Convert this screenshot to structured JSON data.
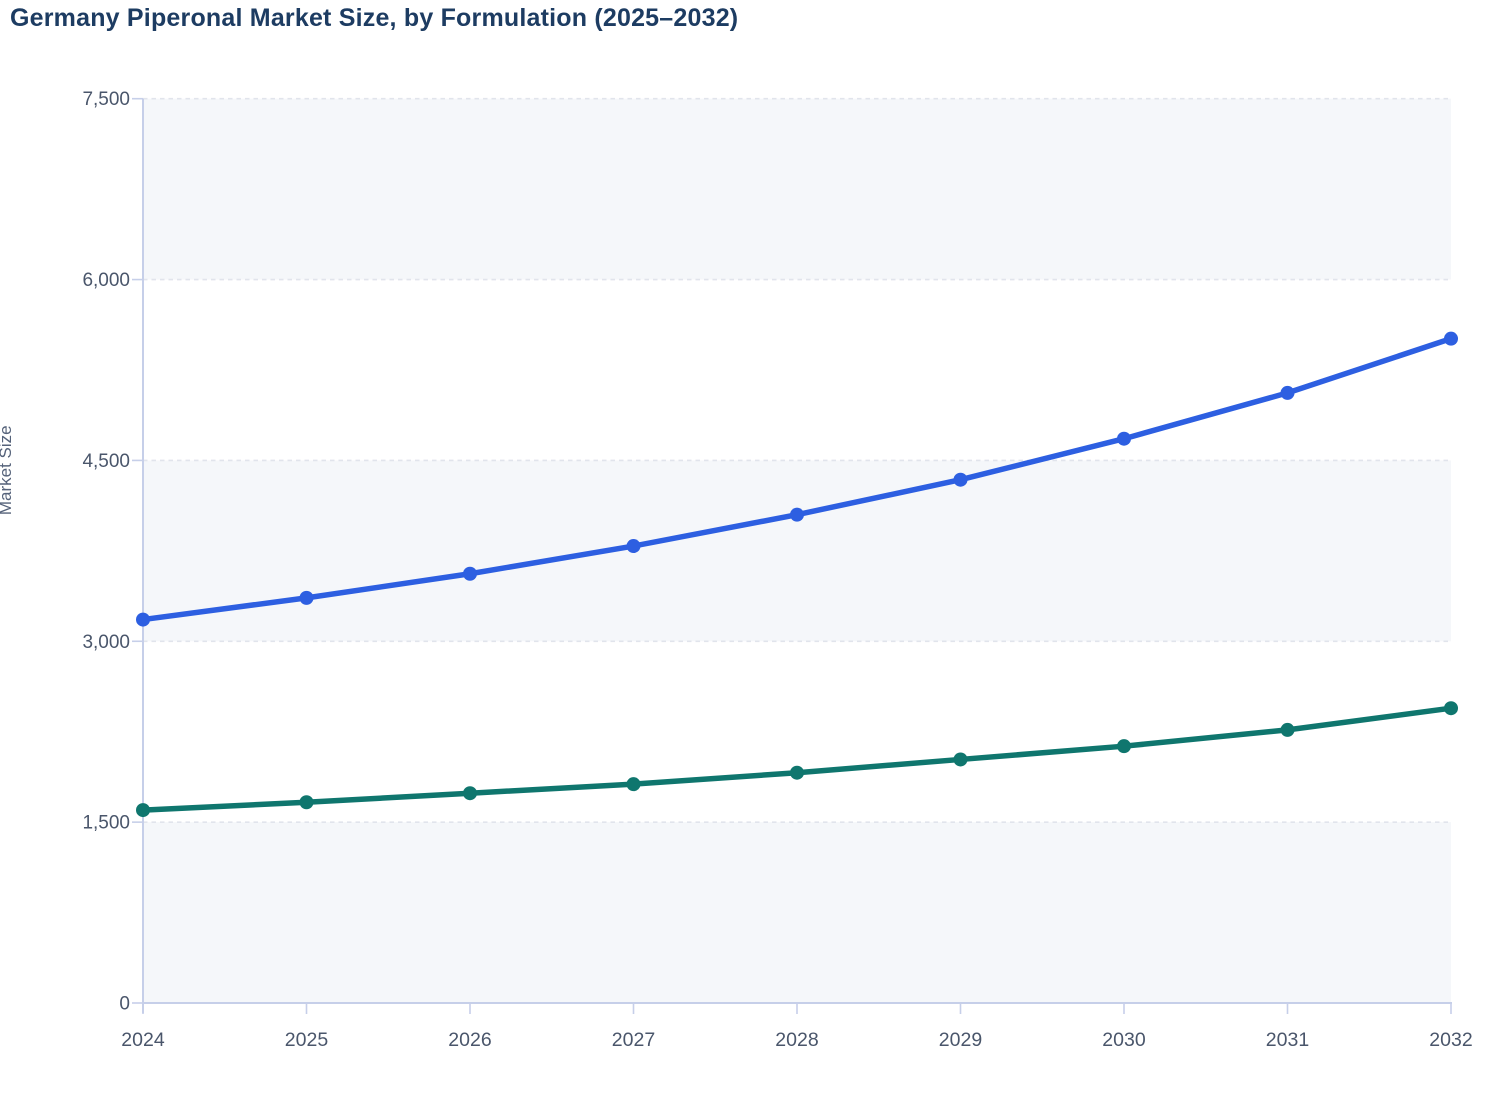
{
  "page": {
    "title": "Germany Piperonal Market Size, by Formulation (2025–2032)"
  },
  "colors": {
    "title_text": "#1d3c62",
    "axis_tick_text": "#4a566b",
    "axis_title_text": "#55627a",
    "axis_line": "#c6cfe9",
    "gridline": "#e1e4ec",
    "plot_band_fill": "#f5f7fa",
    "series_blue": "#2d5fe1",
    "series_teal": "#0f766e",
    "background": "#ffffff"
  },
  "chart_data": {
    "type": "line",
    "title": "Germany Piperonal Market Size, by Formulation (2025–2032)",
    "xlabel": "",
    "ylabel": "Market Size",
    "x": [
      2024,
      2025,
      2026,
      2027,
      2028,
      2029,
      2030,
      2031,
      2032
    ],
    "x_tick_labels": [
      "2024",
      "2025",
      "2026",
      "2027",
      "2028",
      "2029",
      "2030",
      "2031",
      "2032"
    ],
    "series": [
      {
        "name": "series-blue",
        "color": "#2d5fe1",
        "marker": "circle",
        "values": [
          3180,
          3360,
          3560,
          3790,
          4050,
          4340,
          4680,
          5060,
          5510
        ]
      },
      {
        "name": "series-teal",
        "color": "#0f766e",
        "marker": "circle",
        "values": [
          1600,
          1665,
          1740,
          1815,
          1910,
          2020,
          2130,
          2265,
          2445
        ]
      }
    ],
    "ylim": [
      0,
      7500
    ],
    "y_ticks": [
      0,
      1500,
      3000,
      4500,
      6000,
      7500
    ],
    "y_tick_labels": [
      "0",
      "1,500",
      "3,000",
      "4,500",
      "6,000",
      "7,500"
    ],
    "grid": "horizontal dashed gridlines at each y tick",
    "plot_bands": [
      [
        0,
        1500
      ],
      [
        3000,
        4500
      ],
      [
        6000,
        7500
      ]
    ],
    "legend": "none"
  }
}
